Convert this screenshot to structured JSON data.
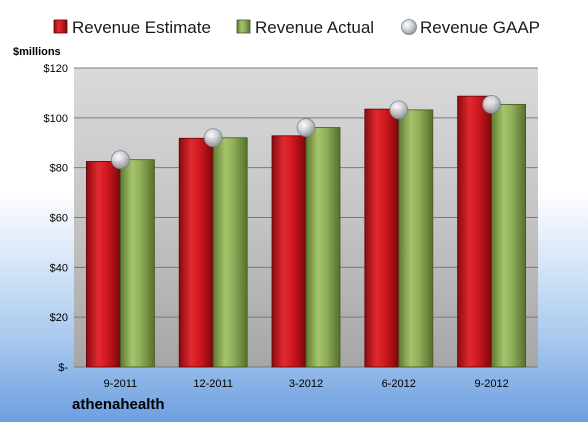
{
  "company": "athenahealth",
  "chart_data": {
    "type": "bar",
    "title": "",
    "unit_label": "$millions",
    "xlabel": "",
    "ylabel": "",
    "categories": [
      "9-2011",
      "12-2011",
      "3-2012",
      "6-2012",
      "9-2012"
    ],
    "series": [
      {
        "name": "Revenue Estimate",
        "kind": "bar",
        "color": "#c8102e",
        "values": [
          82.5,
          91.8,
          92.8,
          103.5,
          108.7
        ]
      },
      {
        "name": "Revenue Actual",
        "kind": "bar",
        "color": "#8fae5a",
        "values": [
          83.2,
          92.0,
          96.1,
          103.2,
          105.4
        ]
      },
      {
        "name": "Revenue GAAP",
        "kind": "marker",
        "color": "#b8bcc4",
        "values": [
          83.2,
          92.0,
          96.1,
          103.2,
          105.4
        ]
      }
    ],
    "ylim": [
      0,
      120
    ],
    "yticks": [
      0,
      20,
      40,
      60,
      80,
      100,
      120
    ],
    "ytick_labels": [
      "$-",
      "$20",
      "$40",
      "$60",
      "$80",
      "$100",
      "$120"
    ],
    "grid": true,
    "legend_position": "top"
  }
}
